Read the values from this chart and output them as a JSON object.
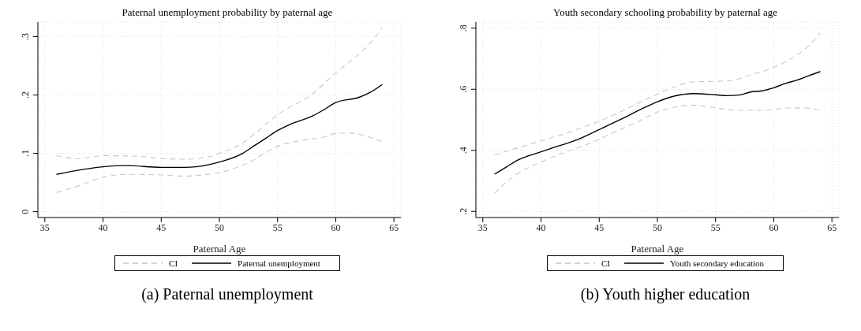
{
  "chart_data": [
    {
      "type": "line",
      "title": "Paternal unemployment probability by paternal age",
      "xlabel": "Paternal Age",
      "xlim": [
        34.4,
        65.6
      ],
      "xticks": [
        35,
        40,
        45,
        50,
        55,
        60,
        65
      ],
      "ylim": [
        -0.01,
        0.325
      ],
      "yticks": [
        {
          "value": 0,
          "label": "0"
        },
        {
          "value": 0.1,
          "label": ".1"
        },
        {
          "value": 0.2,
          "label": ".2"
        },
        {
          "value": 0.3,
          "label": ".3"
        }
      ],
      "grid": true,
      "legend": "bottom",
      "marker": "none",
      "annotations": [
        "(a) Paternal unemployment"
      ],
      "series": [
        {
          "name": "CI",
          "color": "#c8c8c8",
          "line_style": "dashed",
          "x": [
            36,
            38,
            40,
            43,
            45,
            47,
            49,
            50,
            52,
            54,
            55,
            58,
            60,
            61,
            62,
            63,
            64
          ],
          "values": [
            0.096,
            0.091,
            0.096,
            0.095,
            0.091,
            0.09,
            0.094,
            0.1,
            0.118,
            0.15,
            0.166,
            0.202,
            0.238,
            0.254,
            0.27,
            0.29,
            0.315
          ]
        },
        {
          "color": "#c8c8c8",
          "line_style": "dashed",
          "x": [
            36,
            38,
            40,
            42,
            45,
            47,
            49,
            50,
            52,
            53,
            54,
            55,
            57,
            59,
            60,
            61,
            62,
            63,
            64
          ],
          "values": [
            0.033,
            0.045,
            0.059,
            0.064,
            0.063,
            0.061,
            0.064,
            0.067,
            0.08,
            0.089,
            0.102,
            0.112,
            0.122,
            0.128,
            0.134,
            0.135,
            0.133,
            0.127,
            0.12
          ]
        },
        {
          "name": "Paternal unemployment",
          "color": "#000000",
          "line_style": "solid",
          "x": [
            36,
            40,
            42,
            45,
            47,
            48,
            50,
            52,
            53,
            54,
            55,
            56,
            58,
            59,
            60,
            62,
            63,
            64
          ],
          "values": [
            0.064,
            0.077,
            0.079,
            0.076,
            0.076,
            0.077,
            0.085,
            0.1,
            0.113,
            0.126,
            0.139,
            0.149,
            0.164,
            0.175,
            0.187,
            0.196,
            0.205,
            0.218
          ]
        }
      ]
    },
    {
      "type": "line",
      "title": "Youth secondary schooling probability by paternal age",
      "xlabel": "Paternal Age",
      "xlim": [
        34.4,
        65.6
      ],
      "xticks": [
        35,
        40,
        45,
        50,
        55,
        60,
        65
      ],
      "ylim": [
        0.18,
        0.82
      ],
      "yticks": [
        {
          "value": 0.2,
          "label": ".2"
        },
        {
          "value": 0.4,
          "label": ".4"
        },
        {
          "value": 0.6,
          "label": ".6"
        },
        {
          "value": 0.8,
          "label": ".8"
        }
      ],
      "grid": true,
      "legend": "bottom",
      "marker": "none",
      "annotations": [
        "(b) Youth higher education"
      ],
      "series": [
        {
          "name": "CI",
          "color": "#c8c8c8",
          "line_style": "dashed",
          "x": [
            36,
            38,
            40,
            42,
            44,
            46,
            48,
            50,
            52,
            53,
            55,
            56,
            57,
            58,
            59,
            60,
            61,
            62,
            63,
            64
          ],
          "values": [
            0.385,
            0.408,
            0.431,
            0.454,
            0.481,
            0.511,
            0.548,
            0.584,
            0.615,
            0.624,
            0.626,
            0.627,
            0.634,
            0.647,
            0.657,
            0.672,
            0.69,
            0.712,
            0.743,
            0.785
          ]
        },
        {
          "color": "#c8c8c8",
          "line_style": "dashed",
          "x": [
            36,
            37,
            38,
            40,
            42,
            44,
            46,
            48,
            50,
            52,
            53,
            55,
            56,
            57,
            59,
            60,
            61,
            62,
            63,
            64
          ],
          "values": [
            0.259,
            0.296,
            0.324,
            0.362,
            0.393,
            0.42,
            0.454,
            0.488,
            0.525,
            0.545,
            0.548,
            0.539,
            0.534,
            0.531,
            0.531,
            0.534,
            0.538,
            0.539,
            0.538,
            0.531
          ]
        },
        {
          "name": "Youth secondary education",
          "color": "#000000",
          "line_style": "solid",
          "x": [
            36,
            37,
            38,
            40,
            41,
            43,
            45,
            47,
            49,
            50,
            51,
            52,
            53,
            55,
            56,
            57,
            58,
            59,
            60,
            61,
            62,
            63,
            64
          ],
          "values": [
            0.322,
            0.345,
            0.368,
            0.395,
            0.408,
            0.433,
            0.468,
            0.504,
            0.542,
            0.559,
            0.573,
            0.582,
            0.586,
            0.582,
            0.579,
            0.581,
            0.591,
            0.595,
            0.605,
            0.619,
            0.63,
            0.644,
            0.658
          ]
        }
      ]
    }
  ]
}
